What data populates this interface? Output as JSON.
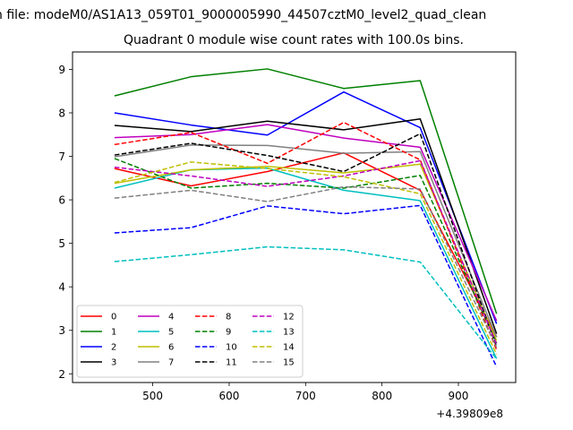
{
  "chart_data": {
    "type": "line",
    "title": "Quadrant 0 module wise count rates with 100.0s bins.",
    "suptitle": "n file: modeM0/AS1A13_059T01_9000005990_44507cztM0_level2_quad_clean",
    "x_offset_label": "+4.39809e8",
    "xlim": [
      395,
      975
    ],
    "ylim": [
      1.8,
      9.4
    ],
    "xticks": [
      500,
      600,
      700,
      800,
      900
    ],
    "yticks": [
      2,
      3,
      4,
      5,
      6,
      7,
      8,
      9
    ],
    "x": [
      450,
      550,
      650,
      750,
      850,
      950
    ],
    "legend_location": "lower-left",
    "series": [
      {
        "name": "0",
        "color": "#ff0000",
        "dash": "solid",
        "values": [
          6.72,
          6.32,
          6.65,
          7.08,
          6.22,
          2.85
        ]
      },
      {
        "name": "1",
        "color": "#008000",
        "dash": "solid",
        "values": [
          8.39,
          8.83,
          9.01,
          8.56,
          8.74,
          3.38
        ]
      },
      {
        "name": "2",
        "color": "#0000ff",
        "dash": "solid",
        "values": [
          8.0,
          7.72,
          7.49,
          8.48,
          7.66,
          3.15
        ]
      },
      {
        "name": "3",
        "color": "#000000",
        "dash": "solid",
        "values": [
          7.71,
          7.57,
          7.81,
          7.61,
          7.86,
          2.92
        ]
      },
      {
        "name": "4",
        "color": "#bf00bf",
        "dash": "solid",
        "values": [
          7.43,
          7.5,
          7.73,
          7.42,
          7.21,
          3.22
        ]
      },
      {
        "name": "5",
        "color": "#00bfbf",
        "dash": "solid",
        "values": [
          6.27,
          6.69,
          6.73,
          6.22,
          5.98,
          2.35
        ]
      },
      {
        "name": "6",
        "color": "#bfbf00",
        "dash": "solid",
        "values": [
          6.38,
          6.69,
          6.77,
          6.62,
          6.82,
          2.76
        ]
      },
      {
        "name": "7",
        "color": "#808080",
        "dash": "solid",
        "values": [
          6.99,
          7.26,
          7.25,
          7.07,
          7.11,
          2.84
        ]
      },
      {
        "name": "8",
        "color": "#ff0000",
        "dash": "dashed",
        "values": [
          7.27,
          7.55,
          6.84,
          7.78,
          6.92,
          2.55
        ]
      },
      {
        "name": "9",
        "color": "#008000",
        "dash": "dashed",
        "values": [
          6.95,
          6.27,
          6.38,
          6.27,
          6.56,
          2.71
        ]
      },
      {
        "name": "10",
        "color": "#0000ff",
        "dash": "dashed",
        "values": [
          5.24,
          5.36,
          5.86,
          5.68,
          5.87,
          2.16
        ]
      },
      {
        "name": "11",
        "color": "#000000",
        "dash": "dashed",
        "values": [
          7.03,
          7.3,
          7.02,
          6.65,
          7.52,
          2.62
        ]
      },
      {
        "name": "12",
        "color": "#bf00bf",
        "dash": "dashed",
        "values": [
          6.75,
          6.55,
          6.31,
          6.55,
          6.9,
          2.68
        ]
      },
      {
        "name": "13",
        "color": "#00bfbf",
        "dash": "dashed",
        "values": [
          4.58,
          4.74,
          4.92,
          4.85,
          4.57,
          2.34
        ]
      },
      {
        "name": "14",
        "color": "#bfbf00",
        "dash": "dashed",
        "values": [
          6.4,
          6.87,
          6.72,
          6.53,
          6.14,
          2.45
        ]
      },
      {
        "name": "15",
        "color": "#808080",
        "dash": "dashed",
        "values": [
          6.04,
          6.22,
          5.96,
          6.3,
          6.25,
          2.61
        ]
      }
    ]
  }
}
